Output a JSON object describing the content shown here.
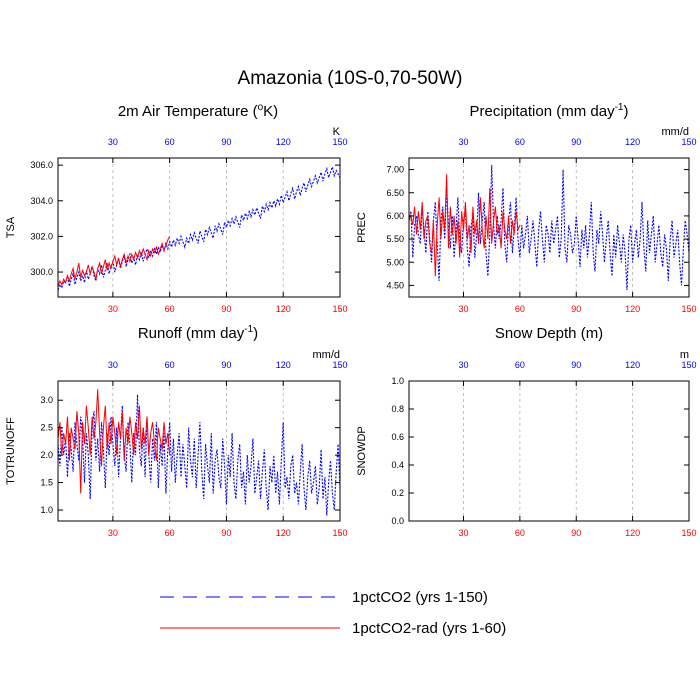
{
  "figure": {
    "title": "Amazonia (10S-0,70-50W)",
    "colors": {
      "series_a": "#0000ff",
      "series_b": "#ff0000",
      "top_ticks": "#0000ff",
      "bottom_ticks": "#ff0000"
    }
  },
  "legend": {
    "items": [
      {
        "label": "1pctCO2 (yrs 1-150)",
        "color": "#0000ff",
        "style": "dashed"
      },
      {
        "label": "1pctCO2-rad (yrs 1-60)",
        "color": "#ff0000",
        "style": "solid"
      }
    ]
  },
  "chart_data": [
    {
      "type": "line",
      "title": "2m Air Temperature (oK)",
      "title_main": "2m Air Temperature (",
      "title_sup": "o",
      "title_tail": "K)",
      "ylabel": "TSA",
      "unit": "K",
      "xlim": [
        1,
        150
      ],
      "ylim": [
        298.6,
        306.4
      ],
      "yticks": [
        300.0,
        302.0,
        304.0,
        306.0
      ],
      "ytick_labels": [
        "300.0",
        "302.0",
        "304.0",
        "306.0"
      ],
      "xticks": [
        30,
        60,
        90,
        120,
        150
      ],
      "grid": "vertical dashed",
      "series": [
        {
          "key": "a",
          "x_start": 1,
          "values": [
            299.0,
            299.3,
            299.1,
            299.5,
            299.4,
            299.8,
            299.2,
            299.6,
            299.9,
            299.3,
            299.7,
            300.0,
            299.5,
            299.8,
            299.4,
            300.1,
            299.6,
            299.9,
            300.3,
            299.8,
            299.5,
            300.2,
            299.9,
            300.4,
            299.7,
            300.1,
            300.5,
            299.9,
            300.3,
            300.6,
            300.0,
            300.4,
            300.7,
            300.2,
            300.6,
            300.9,
            300.3,
            300.7,
            301.0,
            300.5,
            300.8,
            300.4,
            301.0,
            300.7,
            301.1,
            300.6,
            301.0,
            301.3,
            300.8,
            301.2,
            300.9,
            301.3,
            301.0,
            301.4,
            301.1,
            301.5,
            301.2,
            301.6,
            301.3,
            301.7,
            301.4,
            301.8,
            301.5,
            301.9,
            301.6,
            302.0,
            301.7,
            301.4,
            301.9,
            301.6,
            302.1,
            301.8,
            302.2,
            301.9,
            301.6,
            302.3,
            302.0,
            301.7,
            302.4,
            302.1,
            302.5,
            302.2,
            301.9,
            302.6,
            302.3,
            302.7,
            302.4,
            302.1,
            302.8,
            302.5,
            302.9,
            302.6,
            303.0,
            302.7,
            303.1,
            302.8,
            302.5,
            303.2,
            302.9,
            303.3,
            303.0,
            303.4,
            303.1,
            303.5,
            303.2,
            303.6,
            303.3,
            303.0,
            303.7,
            303.4,
            303.8,
            303.5,
            303.9,
            303.6,
            304.0,
            303.7,
            304.1,
            303.8,
            304.3,
            303.9,
            304.2,
            304.5,
            304.0,
            304.4,
            304.7,
            304.1,
            304.5,
            304.8,
            304.3,
            304.7,
            305.0,
            304.5,
            304.9,
            305.2,
            304.8,
            305.1,
            305.4,
            305.0,
            305.3,
            305.6,
            305.1,
            305.5,
            305.8,
            305.3,
            305.6,
            305.9,
            305.4,
            305.7,
            305.5,
            305.3
          ]
        },
        {
          "key": "b",
          "x_start": 1,
          "values": [
            299.2,
            299.5,
            299.3,
            299.6,
            299.4,
            299.8,
            299.5,
            299.9,
            300.2,
            299.6,
            300.0,
            300.5,
            299.7,
            300.1,
            299.8,
            300.0,
            300.4,
            299.9,
            300.3,
            300.0,
            299.6,
            300.2,
            300.5,
            299.9,
            300.3,
            300.7,
            300.1,
            300.5,
            300.2,
            300.6,
            300.9,
            300.4,
            300.8,
            300.3,
            300.7,
            301.0,
            300.5,
            300.9,
            300.6,
            301.0,
            300.7,
            301.1,
            300.8,
            301.2,
            300.9,
            301.3,
            301.0,
            300.7,
            301.2,
            300.9,
            301.3,
            301.1,
            301.4,
            301.0,
            301.3,
            301.6,
            301.2,
            301.5,
            301.8,
            302.0
          ]
        }
      ]
    },
    {
      "type": "line",
      "title": "Precipitation (mm day-1)",
      "title_main": "Precipitation (mm day",
      "title_sup": "-1",
      "title_tail": ")",
      "ylabel": "PREC",
      "unit": "mm/d",
      "xlim": [
        1,
        150
      ],
      "ylim": [
        4.25,
        7.25
      ],
      "yticks": [
        4.5,
        5.0,
        5.5,
        6.0,
        6.5,
        7.0
      ],
      "ytick_labels": [
        "4.50",
        "5.00",
        "5.50",
        "6.00",
        "6.50",
        "7.00"
      ],
      "xticks": [
        30,
        60,
        90,
        120,
        150
      ],
      "grid": "vertical dashed",
      "series": [
        {
          "key": "a",
          "x_start": 1,
          "values": [
            5.9,
            6.1,
            5.1,
            5.8,
            6.0,
            5.6,
            5.4,
            6.2,
            5.7,
            5.2,
            6.1,
            5.5,
            5.0,
            5.9,
            6.3,
            5.4,
            4.6,
            5.9,
            6.2,
            5.5,
            6.6,
            5.8,
            5.3,
            6.0,
            5.1,
            5.7,
            6.4,
            5.5,
            5.2,
            5.9,
            6.1,
            5.3,
            4.9,
            5.8,
            6.0,
            5.1,
            5.6,
            6.5,
            5.4,
            5.9,
            6.3,
            5.2,
            4.7,
            5.6,
            7.1,
            5.8,
            5.3,
            6.0,
            5.5,
            5.9,
            6.6,
            5.4,
            5.0,
            5.9,
            6.3,
            5.2,
            5.7,
            6.4,
            5.5,
            5.1,
            5.8,
            5.3,
            5.6,
            6.0,
            5.2,
            5.5,
            5.9,
            5.4,
            4.9,
            5.7,
            6.1,
            5.5,
            5.0,
            5.8,
            5.6,
            5.2,
            5.9,
            5.4,
            5.7,
            6.0,
            5.1,
            5.5,
            7.0,
            5.3,
            5.0,
            5.8,
            5.6,
            5.2,
            5.4,
            6.0,
            5.5,
            4.9,
            5.7,
            5.3,
            5.8,
            5.1,
            5.6,
            6.3,
            5.2,
            4.8,
            5.7,
            5.4,
            6.1,
            5.6,
            5.0,
            5.5,
            5.9,
            5.2,
            4.7,
            5.6,
            5.1,
            5.8,
            5.4,
            5.0,
            5.6,
            5.2,
            4.4,
            5.5,
            5.8,
            5.0,
            5.4,
            5.7,
            5.1,
            5.5,
            6.3,
            5.3,
            4.8,
            5.9,
            5.2,
            5.6,
            6.0,
            5.0,
            5.4,
            5.8,
            5.2,
            4.9,
            5.6,
            5.3,
            4.6,
            5.5,
            5.9,
            5.1,
            5.4,
            5.7,
            5.0,
            4.5,
            5.3,
            5.9,
            5.6,
            5.2
          ]
        },
        {
          "key": "b",
          "x_start": 1,
          "values": [
            5.9,
            6.0,
            5.8,
            6.2,
            5.6,
            6.1,
            5.7,
            6.3,
            5.5,
            5.9,
            6.0,
            5.4,
            5.2,
            5.9,
            4.7,
            5.8,
            6.4,
            5.5,
            6.1,
            5.7,
            6.9,
            5.3,
            6.2,
            5.6,
            6.0,
            5.4,
            5.9,
            5.1,
            6.1,
            5.7,
            6.3,
            5.5,
            5.8,
            5.2,
            6.2,
            5.6,
            5.9,
            5.4,
            6.4,
            5.7,
            5.3,
            6.0,
            5.5,
            6.6,
            5.4,
            5.9,
            6.2,
            5.6,
            5.8,
            5.3,
            6.1,
            5.7,
            5.5,
            6.0,
            5.4,
            5.9,
            5.6,
            6.1,
            5.7,
            5.8
          ]
        }
      ]
    },
    {
      "type": "line",
      "title": "Runoff (mm day-1)",
      "title_main": "Runoff (mm day",
      "title_sup": "-1",
      "title_tail": ")",
      "ylabel": "TOTRUNOFF",
      "unit": "mm/d",
      "xlim": [
        1,
        150
      ],
      "ylim": [
        0.8,
        3.35
      ],
      "yticks": [
        1.0,
        1.5,
        2.0,
        2.5,
        3.0
      ],
      "ytick_labels": [
        "1.0",
        "1.5",
        "2.0",
        "2.5",
        "3.0"
      ],
      "xticks": [
        30,
        60,
        90,
        120,
        150
      ],
      "grid": "vertical dashed",
      "series": [
        {
          "key": "a",
          "x_start": 1,
          "values": [
            2.2,
            1.8,
            2.5,
            2.0,
            2.3,
            1.6,
            2.4,
            2.1,
            1.7,
            2.6,
            2.2,
            1.9,
            2.7,
            2.3,
            1.5,
            2.4,
            2.0,
            1.2,
            2.5,
            2.8,
            1.9,
            2.3,
            1.7,
            2.6,
            2.1,
            1.4,
            2.4,
            2.0,
            2.7,
            2.2,
            1.8,
            2.5,
            1.6,
            2.3,
            2.9,
            2.0,
            1.7,
            2.6,
            2.2,
            1.5,
            2.4,
            2.0,
            3.1,
            2.1,
            1.8,
            2.5,
            1.6,
            2.7,
            2.0,
            1.5,
            2.3,
            1.9,
            2.6,
            1.4,
            2.2,
            1.8,
            2.4,
            1.3,
            2.1,
            2.6,
            1.7,
            2.3,
            1.5,
            2.0,
            2.4,
            1.6,
            2.2,
            1.8,
            1.4,
            2.5,
            1.9,
            1.6,
            2.3,
            1.4,
            2.0,
            2.6,
            1.7,
            1.2,
            2.2,
            1.8,
            1.5,
            2.4,
            1.3,
            1.9,
            2.1,
            1.6,
            1.4,
            2.3,
            1.8,
            1.1,
            2.0,
            1.6,
            2.4,
            1.5,
            1.2,
            1.9,
            2.2,
            1.4,
            1.7,
            1.1,
            2.0,
            1.5,
            1.8,
            2.3,
            1.3,
            1.6,
            1.9,
            1.2,
            1.7,
            2.1,
            1.4,
            1.0,
            1.8,
            1.5,
            2.0,
            1.3,
            1.7,
            1.1,
            1.9,
            2.6,
            1.4,
            1.6,
            1.2,
            1.8,
            2.0,
            1.3,
            1.5,
            1.1,
            1.7,
            2.2,
            1.4,
            1.0,
            1.6,
            1.9,
            1.3,
            1.5,
            1.8,
            1.1,
            1.4,
            2.1,
            1.2,
            1.6,
            0.9,
            1.5,
            1.9,
            1.3,
            1.0,
            1.7,
            2.2,
            1.4
          ]
        },
        {
          "key": "b",
          "x_start": 1,
          "values": [
            2.3,
            2.6,
            2.0,
            2.4,
            2.2,
            2.7,
            1.9,
            2.5,
            2.3,
            2.1,
            2.8,
            2.4,
            1.3,
            2.6,
            2.2,
            2.9,
            2.5,
            2.0,
            2.7,
            2.3,
            2.6,
            3.2,
            2.4,
            1.8,
            2.5,
            2.9,
            2.1,
            2.6,
            2.2,
            2.7,
            2.4,
            2.0,
            2.6,
            2.3,
            2.8,
            1.9,
            2.5,
            2.2,
            2.7,
            2.4,
            2.0,
            2.6,
            2.3,
            2.9,
            2.1,
            2.5,
            2.2,
            2.7,
            2.0,
            2.4,
            2.6,
            2.2,
            1.9,
            2.5,
            2.3,
            2.1,
            2.6,
            2.2,
            2.4,
            2.0
          ]
        }
      ]
    },
    {
      "type": "line",
      "title": "Snow Depth (m)",
      "title_main": "Snow Depth (m)",
      "title_sup": "",
      "title_tail": "",
      "ylabel": "SNOWDP",
      "unit": "m",
      "xlim": [
        1,
        150
      ],
      "ylim": [
        0.0,
        1.0
      ],
      "yticks": [
        0.0,
        0.2,
        0.4,
        0.6,
        0.8,
        1.0
      ],
      "ytick_labels": [
        "0.0",
        "0.2",
        "0.4",
        "0.6",
        "0.8",
        "1.0"
      ],
      "xticks": [
        30,
        60,
        90,
        120,
        150
      ],
      "grid": "vertical dashed",
      "series": [
        {
          "key": "a",
          "x_start": 1,
          "values": [
            0.0,
            0.0
          ]
        },
        {
          "key": "b",
          "x_start": 1,
          "values": [
            0.0,
            0.0
          ]
        }
      ]
    }
  ]
}
